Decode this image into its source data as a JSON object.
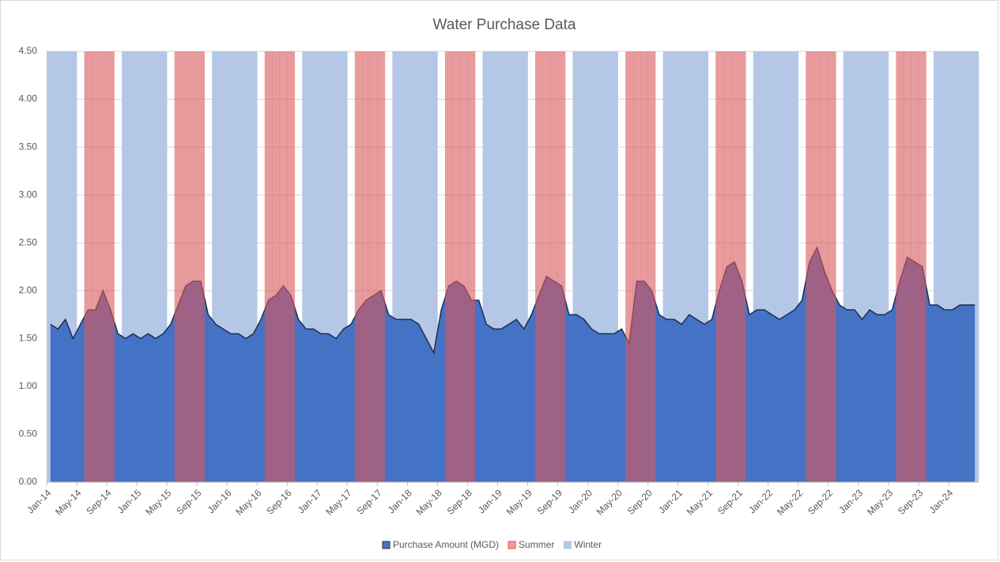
{
  "chart_data": {
    "type": "bar",
    "title": "Water Purchase Data",
    "categories": [
      "Jan-14",
      null,
      null,
      null,
      "May-14",
      null,
      null,
      null,
      "Sep-14",
      null,
      null,
      null,
      "Jan-15",
      null,
      null,
      null,
      "May-15",
      null,
      null,
      null,
      "Sep-15",
      null,
      null,
      null,
      "Jan-16",
      null,
      null,
      null,
      "May-16",
      null,
      null,
      null,
      "Sep-16",
      null,
      null,
      null,
      "Jan-17",
      null,
      null,
      null,
      "May-17",
      null,
      null,
      null,
      "Sep-17",
      null,
      null,
      null,
      "Jan-18",
      null,
      null,
      null,
      "May-18",
      null,
      null,
      null,
      "Sep-18",
      null,
      null,
      null,
      "Jan-19",
      null,
      null,
      null,
      "May-19",
      null,
      null,
      null,
      "Sep-19",
      null,
      null,
      null,
      "Jan-20",
      null,
      null,
      null,
      "May-20",
      null,
      null,
      null,
      "Sep-20",
      null,
      null,
      null,
      "Jan-21",
      null,
      null,
      null,
      "May-21",
      null,
      null,
      null,
      "Sep-21",
      null,
      null,
      null,
      "Jan-22",
      null,
      null,
      null,
      "May-22",
      null,
      null,
      null,
      "Sep-22",
      null,
      null,
      null,
      "Jan-23",
      null,
      null,
      null,
      "May-23",
      null,
      null,
      null,
      "Sep-23",
      null,
      null,
      null,
      "Jan-24",
      null,
      null,
      null
    ],
    "series": [
      {
        "name": "Purchase Amount (MGD)",
        "kind": "area",
        "color": "#4472c4",
        "line_color": "#1f2d4d",
        "values": [
          1.65,
          1.6,
          1.7,
          1.5,
          1.65,
          1.8,
          1.8,
          2.0,
          1.8,
          1.55,
          1.5,
          1.55,
          1.5,
          1.55,
          1.5,
          1.55,
          1.65,
          1.85,
          2.05,
          2.1,
          2.1,
          1.75,
          1.65,
          1.6,
          1.55,
          1.55,
          1.5,
          1.55,
          1.7,
          1.9,
          1.95,
          2.05,
          1.95,
          1.7,
          1.6,
          1.6,
          1.55,
          1.55,
          1.5,
          1.6,
          1.65,
          1.8,
          1.9,
          1.95,
          2.0,
          1.75,
          1.7,
          1.7,
          1.7,
          1.65,
          1.5,
          1.35,
          1.8,
          2.05,
          2.1,
          2.05,
          1.9,
          1.9,
          1.65,
          1.6,
          1.6,
          1.65,
          1.7,
          1.6,
          1.75,
          1.95,
          2.15,
          2.1,
          2.05,
          1.75,
          1.75,
          1.7,
          1.6,
          1.55,
          1.55,
          1.55,
          1.6,
          1.45,
          2.1,
          2.1,
          2.0,
          1.75,
          1.7,
          1.7,
          1.65,
          1.75,
          1.7,
          1.65,
          1.7,
          2.0,
          2.25,
          2.3,
          2.1,
          1.75,
          1.8,
          1.8,
          1.75,
          1.7,
          1.75,
          1.8,
          1.9,
          2.3,
          2.45,
          2.2,
          2.0,
          1.85,
          1.8,
          1.8,
          1.7,
          1.8,
          1.75,
          1.75,
          1.8,
          2.1,
          2.35,
          2.3,
          2.25,
          1.85,
          1.85,
          1.8,
          1.8,
          1.85,
          1.85,
          1.85
        ]
      },
      {
        "name": "Summer",
        "kind": "bar",
        "color": "#d9595b",
        "values": [
          null,
          null,
          null,
          null,
          null,
          4.5,
          4.5,
          4.5,
          4.5,
          null,
          null,
          null,
          null,
          null,
          null,
          null,
          null,
          4.5,
          4.5,
          4.5,
          4.5,
          null,
          null,
          null,
          null,
          null,
          null,
          null,
          null,
          4.5,
          4.5,
          4.5,
          4.5,
          null,
          null,
          null,
          null,
          null,
          null,
          null,
          null,
          4.5,
          4.5,
          4.5,
          4.5,
          null,
          null,
          null,
          null,
          null,
          null,
          null,
          null,
          4.5,
          4.5,
          4.5,
          4.5,
          null,
          null,
          null,
          null,
          null,
          null,
          null,
          null,
          4.5,
          4.5,
          4.5,
          4.5,
          null,
          null,
          null,
          null,
          null,
          null,
          null,
          null,
          4.5,
          4.5,
          4.5,
          4.5,
          null,
          null,
          null,
          null,
          null,
          null,
          null,
          null,
          4.5,
          4.5,
          4.5,
          4.5,
          null,
          null,
          null,
          null,
          null,
          null,
          null,
          null,
          4.5,
          4.5,
          4.5,
          4.5,
          null,
          null,
          null,
          null,
          null,
          null,
          null,
          null,
          4.5,
          4.5,
          4.5,
          4.5,
          null,
          null,
          null,
          null,
          null,
          null,
          null
        ]
      },
      {
        "name": "Winter",
        "kind": "bar",
        "color": "#b4c7e7",
        "values": [
          4.5,
          4.5,
          4.5,
          4.5,
          null,
          null,
          null,
          null,
          null,
          null,
          4.5,
          4.5,
          4.5,
          4.5,
          4.5,
          4.5,
          null,
          null,
          null,
          null,
          null,
          null,
          4.5,
          4.5,
          4.5,
          4.5,
          4.5,
          4.5,
          null,
          null,
          null,
          null,
          null,
          null,
          4.5,
          4.5,
          4.5,
          4.5,
          4.5,
          4.5,
          null,
          null,
          null,
          null,
          null,
          null,
          4.5,
          4.5,
          4.5,
          4.5,
          4.5,
          4.5,
          null,
          null,
          null,
          null,
          null,
          null,
          4.5,
          4.5,
          4.5,
          4.5,
          4.5,
          4.5,
          null,
          null,
          null,
          null,
          null,
          null,
          4.5,
          4.5,
          4.5,
          4.5,
          4.5,
          4.5,
          null,
          null,
          null,
          null,
          null,
          null,
          4.5,
          4.5,
          4.5,
          4.5,
          4.5,
          4.5,
          null,
          null,
          null,
          null,
          null,
          null,
          4.5,
          4.5,
          4.5,
          4.5,
          4.5,
          4.5,
          null,
          null,
          null,
          null,
          null,
          null,
          4.5,
          4.5,
          4.5,
          4.5,
          4.5,
          4.5,
          null,
          null,
          null,
          null,
          null,
          null,
          4.5,
          4.5,
          4.5,
          4.5,
          4.5,
          4.5
        ]
      }
    ],
    "ylim": [
      0,
      4.5
    ],
    "yticks": [
      {
        "value": 0,
        "label": "0.00"
      },
      {
        "value": 0.5,
        "label": "0.50"
      },
      {
        "value": 1,
        "label": "1.00"
      },
      {
        "value": 1.5,
        "label": "1.50"
      },
      {
        "value": 2,
        "label": "2.00"
      },
      {
        "value": 2.5,
        "label": "2.50"
      },
      {
        "value": 3,
        "label": "3.00"
      },
      {
        "value": 3.5,
        "label": "3.50"
      },
      {
        "value": 4,
        "label": "4.00"
      },
      {
        "value": 4.5,
        "label": "4.50"
      }
    ],
    "grid": true,
    "legend": "bottom"
  }
}
